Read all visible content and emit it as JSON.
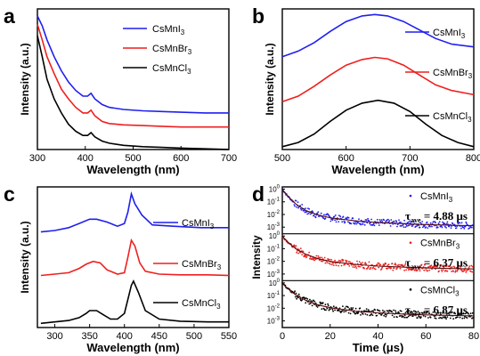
{
  "figure": {
    "panel_labels": [
      "a",
      "b",
      "c",
      "d"
    ],
    "colors": {
      "CsMnI3": "#1f1fef",
      "CsMnBr3": "#ef1f1f",
      "CsMnCl3": "#000000",
      "axes": "#000000"
    }
  },
  "chart_data": [
    {
      "panel": "a",
      "type": "line",
      "xlabel": "Wavelength (nm)",
      "ylabel": "Intensity (a.u.)",
      "xlim": [
        300,
        700
      ],
      "xticks": [
        "300",
        "400",
        "500",
        "600",
        "700"
      ],
      "ylim": [
        0,
        1
      ],
      "legend": "top-right",
      "series": [
        {
          "name": "CsMnI3",
          "label": "CsMnI",
          "sub": "3",
          "color": "#1f1fef",
          "x": [
            300,
            310,
            320,
            335,
            350,
            365,
            380,
            395,
            405,
            412,
            420,
            435,
            450,
            480,
            520,
            560,
            600,
            650,
            700
          ],
          "y": [
            0.95,
            0.88,
            0.78,
            0.66,
            0.56,
            0.48,
            0.42,
            0.38,
            0.38,
            0.4,
            0.36,
            0.32,
            0.3,
            0.285,
            0.275,
            0.27,
            0.265,
            0.26,
            0.26
          ]
        },
        {
          "name": "CsMnBr3",
          "label": "CsMnBr",
          "sub": "3",
          "color": "#ef1f1f",
          "x": [
            300,
            310,
            320,
            335,
            350,
            365,
            380,
            395,
            405,
            412,
            420,
            435,
            450,
            480,
            520,
            560,
            600,
            650,
            700
          ],
          "y": [
            0.89,
            0.78,
            0.66,
            0.54,
            0.43,
            0.36,
            0.3,
            0.26,
            0.26,
            0.28,
            0.24,
            0.2,
            0.185,
            0.175,
            0.17,
            0.165,
            0.16,
            0.16,
            0.16
          ]
        },
        {
          "name": "CsMnCl3",
          "label": "CsMnCl",
          "sub": "3",
          "color": "#000000",
          "x": [
            300,
            310,
            320,
            335,
            350,
            365,
            380,
            395,
            405,
            412,
            420,
            435,
            450,
            480,
            520,
            560,
            600,
            650,
            700
          ],
          "y": [
            0.81,
            0.66,
            0.5,
            0.36,
            0.26,
            0.18,
            0.13,
            0.1,
            0.1,
            0.12,
            0.09,
            0.06,
            0.045,
            0.03,
            0.02,
            0.015,
            0.01,
            0.005,
            0.0
          ]
        }
      ]
    },
    {
      "panel": "b",
      "type": "line",
      "xlabel": "Wavelength (nm)",
      "ylabel": "Intensity (a.u.)",
      "xlim": [
        500,
        800
      ],
      "xticks": [
        "500",
        "600",
        "700",
        "800"
      ],
      "ylim": [
        0,
        1
      ],
      "legend": "right",
      "series": [
        {
          "name": "CsMnI3",
          "label": "CsMnI",
          "sub": "3",
          "color": "#1f1fef",
          "x": [
            500,
            525,
            550,
            575,
            600,
            625,
            645,
            665,
            690,
            715,
            740,
            765,
            800
          ],
          "y": [
            0.66,
            0.7,
            0.76,
            0.84,
            0.91,
            0.95,
            0.96,
            0.95,
            0.91,
            0.85,
            0.79,
            0.75,
            0.73
          ]
        },
        {
          "name": "CsMnBr3",
          "label": "CsMnBr",
          "sub": "3",
          "color": "#ef1f1f",
          "x": [
            500,
            525,
            550,
            575,
            600,
            625,
            645,
            665,
            690,
            715,
            740,
            765,
            800
          ],
          "y": [
            0.34,
            0.38,
            0.45,
            0.53,
            0.6,
            0.64,
            0.655,
            0.645,
            0.6,
            0.53,
            0.46,
            0.42,
            0.39
          ]
        },
        {
          "name": "CsMnCl3",
          "label": "CsMnCl",
          "sub": "3",
          "color": "#000000",
          "x": [
            500,
            525,
            550,
            575,
            600,
            625,
            650,
            675,
            700,
            725,
            750,
            775,
            800
          ],
          "y": [
            0.02,
            0.05,
            0.11,
            0.2,
            0.28,
            0.33,
            0.35,
            0.33,
            0.27,
            0.18,
            0.1,
            0.05,
            0.02
          ]
        }
      ]
    },
    {
      "panel": "c",
      "type": "line",
      "xlabel": "Wavelength (nm)",
      "ylabel": "Intensity (a.u.)",
      "xlim": [
        275,
        550
      ],
      "xticks": [
        "300",
        "350",
        "400",
        "450",
        "500",
        "550"
      ],
      "ylim": [
        0,
        1
      ],
      "legend": "right",
      "series": [
        {
          "name": "CsMnI3",
          "label": "CsMnI",
          "sub": "3",
          "color": "#1f1fef",
          "x": [
            280,
            300,
            320,
            335,
            350,
            360,
            375,
            390,
            400,
            405,
            410,
            415,
            425,
            440,
            470,
            510,
            550
          ],
          "y": [
            0.68,
            0.69,
            0.71,
            0.74,
            0.77,
            0.77,
            0.75,
            0.72,
            0.74,
            0.82,
            0.95,
            0.88,
            0.8,
            0.73,
            0.72,
            0.71,
            0.71
          ]
        },
        {
          "name": "CsMnBr3",
          "label": "CsMnBr",
          "sub": "3",
          "color": "#ef1f1f",
          "x": [
            280,
            300,
            320,
            335,
            345,
            355,
            365,
            375,
            390,
            400,
            405,
            410,
            415,
            422,
            430,
            450,
            480,
            520,
            550
          ],
          "y": [
            0.37,
            0.38,
            0.39,
            0.42,
            0.45,
            0.47,
            0.46,
            0.41,
            0.38,
            0.39,
            0.5,
            0.62,
            0.58,
            0.46,
            0.4,
            0.38,
            0.375,
            0.375,
            0.37
          ]
        },
        {
          "name": "CsMnCl3",
          "label": "CsMnCl",
          "sub": "3",
          "color": "#000000",
          "x": [
            280,
            300,
            320,
            335,
            345,
            350,
            360,
            370,
            380,
            390,
            400,
            405,
            410,
            413,
            420,
            430,
            450,
            480,
            520,
            550
          ],
          "y": [
            0.03,
            0.04,
            0.05,
            0.07,
            0.1,
            0.12,
            0.12,
            0.09,
            0.06,
            0.06,
            0.1,
            0.2,
            0.3,
            0.33,
            0.25,
            0.12,
            0.06,
            0.045,
            0.04,
            0.04
          ]
        }
      ]
    },
    {
      "panel": "d",
      "type": "scatter",
      "xlabel": "Time (μs)",
      "ylabel": "Intensity",
      "xlim": [
        0,
        80
      ],
      "xticks": [
        "0",
        "20",
        "40",
        "60",
        "80"
      ],
      "ylim": [
        0.0003,
        1.5
      ],
      "yscale": "log",
      "yticks": [
        {
          "b": "10",
          "e": "0"
        },
        {
          "b": "10",
          "e": "-1"
        },
        {
          "b": "10",
          "e": "-2"
        },
        {
          "b": "10",
          "e": "-3"
        }
      ],
      "series": [
        {
          "name": "CsMnI3",
          "label": "CsMnI",
          "sub": "3",
          "color": "#1f1fef",
          "tau_label": "τ",
          "tau_sub": "ave",
          "tau_value": "= 4.88 μs",
          "fit_x": [
            0,
            1,
            2,
            4,
            6,
            10,
            15,
            20,
            30,
            40,
            50,
            60,
            70,
            80
          ],
          "fit_y": [
            1.0,
            0.55,
            0.32,
            0.13,
            0.06,
            0.02,
            0.009,
            0.0055,
            0.0032,
            0.0023,
            0.0019,
            0.0016,
            0.0014,
            0.0013
          ]
        },
        {
          "name": "CsMnBr3",
          "label": "CsMnBr",
          "sub": "3",
          "color": "#ef1f1f",
          "tau_label": "τ",
          "tau_sub": "ave",
          "tau_value": "= 6.37 μs",
          "fit_x": [
            0,
            1,
            2,
            4,
            6,
            10,
            15,
            20,
            30,
            40,
            50,
            60,
            70,
            80
          ],
          "fit_y": [
            1.0,
            0.6,
            0.38,
            0.17,
            0.09,
            0.035,
            0.016,
            0.01,
            0.0058,
            0.0042,
            0.0035,
            0.003,
            0.0027,
            0.0025
          ]
        },
        {
          "name": "CsMnCl3",
          "label": "CsMnCl",
          "sub": "3",
          "color": "#000000",
          "tau_label": "τ",
          "tau_sub": "ave",
          "tau_value": "= 6.87 μs",
          "fit_x": [
            0,
            1,
            2,
            4,
            6,
            10,
            15,
            20,
            30,
            40,
            50,
            60,
            70,
            80
          ],
          "fit_y": [
            1.0,
            0.62,
            0.4,
            0.19,
            0.1,
            0.04,
            0.018,
            0.011,
            0.006,
            0.0043,
            0.0035,
            0.003,
            0.0027,
            0.0025
          ]
        }
      ]
    }
  ]
}
